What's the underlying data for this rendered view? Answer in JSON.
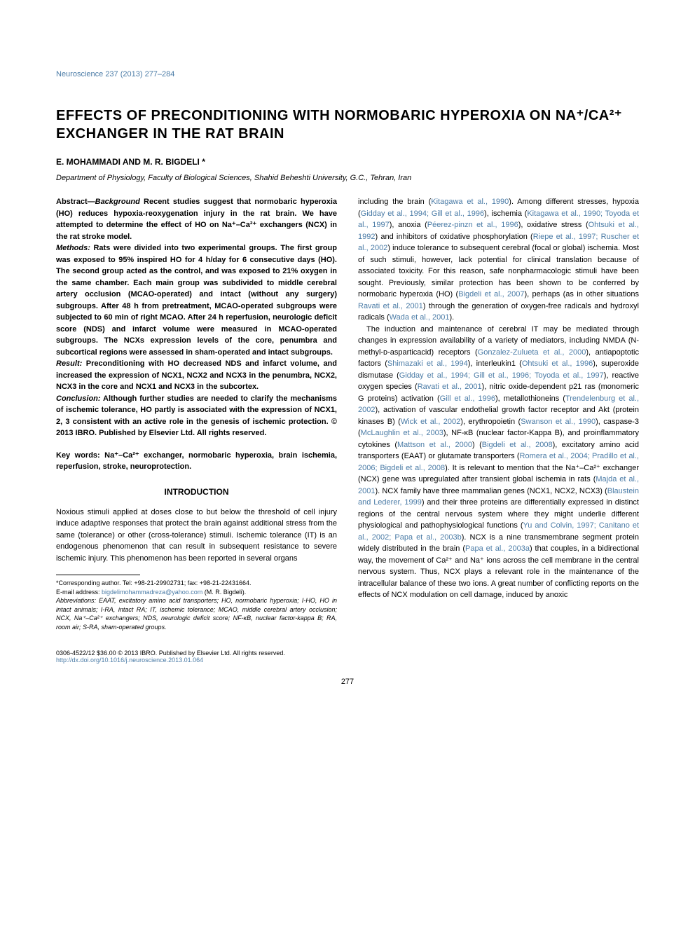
{
  "journal_ref": "Neuroscience 237 (2013) 277–284",
  "title": "EFFECTS OF PRECONDITIONING WITH NORMOBARIC HYPEROXIA ON NA⁺/CA²⁺ EXCHANGER IN THE RAT BRAIN",
  "authors": "E. MOHAMMADI AND M. R. BIGDELI *",
  "affiliation": "Department of Physiology, Faculty of Biological Sciences, Shahid Beheshti University, G.C., Tehran, Iran",
  "abstract": {
    "label": "Abstract—",
    "background_label": "Background",
    "background": " Recent studies suggest that normobaric hyperoxia (HO) reduces hypoxia-reoxygenation injury in the rat brain. We have attempted to determine the effect of HO on Na⁺–Ca²⁺ exchangers (NCX) in the rat stroke model.",
    "methods_label": "Methods:",
    "methods": " Rats were divided into two experimental groups. The first group was exposed to 95% inspired HO for 4 h/day for 6 consecutive days (HO). The second group acted as the control, and was exposed to 21% oxygen in the same chamber. Each main group was subdivided to middle cerebral artery occlusion (MCAO-operated) and intact (without any surgery) subgroups. After 48 h from pretreatment, MCAO-operated subgroups were subjected to 60 min of right MCAO. After 24 h reperfusion, neurologic deficit score (NDS) and infarct volume were measured in MCAO-operated subgroups. The NCXs expression levels of the core, penumbra and subcortical regions were assessed in sham-operated and intact subgroups.",
    "result_label": "Result:",
    "result": " Preconditioning with HO decreased NDS and infarct volume, and increased the expression of NCX1, NCX2 and NCX3 in the penumbra, NCX2, NCX3 in the core and NCX1 and NCX3 in the subcortex.",
    "conclusion_label": "Conclusion:",
    "conclusion": " Although further studies are needed to clarify the mechanisms of ischemic tolerance, HO partly is associated with the expression of NCX1, 2, 3 consistent with an active role in the genesis of ischemic protection.",
    "copyright": "© 2013 IBRO. Published by Elsevier Ltd. All rights reserved."
  },
  "keywords": "Key words: Na⁺–Ca²⁺ exchanger, normobaric hyperoxia, brain ischemia, reperfusion, stroke, neuroprotection.",
  "intro_heading": "INTRODUCTION",
  "intro_p1": "Noxious stimuli applied at doses close to but below the threshold of cell injury induce adaptive responses that protect the brain against additional stress from the same (tolerance) or other (cross-tolerance) stimuli. Ischemic tolerance (IT) is an endogenous phenomenon that can result in subsequent resistance to severe ischemic injury. This phenomenon has been reported in several organs",
  "right_col_p1a": "including the brain (",
  "cite1": "Kitagawa et al., 1990",
  "right_col_p1b": "). Among different stresses, hypoxia (",
  "cite2": "Gidday et al., 1994; Gill et al., 1996",
  "right_col_p1c": "), ischemia (",
  "cite3": "Kitagawa et al., 1990; Toyoda et al., 1997",
  "right_col_p1d": "), anoxia (",
  "cite4": "Péerez-pinzn et al., 1996",
  "right_col_p1e": "), oxidative stress (",
  "cite5": "Ohtsuki et al., 1992",
  "right_col_p1f": ") and inhibitors of oxidative phosphorylation (",
  "cite6": "Riepe et al., 1997; Ruscher et al., 2002",
  "right_col_p1g": ") induce tolerance to subsequent cerebral (focal or global) ischemia. Most of such stimuli, however, lack potential for clinical translation because of associated toxicity. For this reason, safe nonpharmacologic stimuli have been sought. Previously, similar protection has been shown to be conferred by normobaric hyperoxia (HO) (",
  "cite7": "Bigdeli et al., 2007",
  "right_col_p1h": "), perhaps (as in other situations ",
  "cite8": "Ravati et al., 2001",
  "right_col_p1i": ") through the generation of oxygen-free radicals and hydroxyl radicals (",
  "cite9": "Wada et al., 2001",
  "right_col_p1j": ").",
  "right_col_p2a": "The induction and maintenance of cerebral IT may be mediated through changes in expression availability of a variety of mediators, including NMDA (N-methyl-ᴅ-asparticacid) receptors (",
  "cite10": "Gonzalez-Zulueta et al., 2000",
  "right_col_p2b": "), antiapoptotic factors (",
  "cite11": "Shimazaki et al., 1994",
  "right_col_p2c": "), interleukin1 (",
  "cite12": "Ohtsuki et al., 1996",
  "right_col_p2d": "), superoxide dismutase (",
  "cite13": "Gidday et al., 1994; Gill et al., 1996; Toyoda et al., 1997",
  "right_col_p2e": "), reactive oxygen species (",
  "cite14": "Ravati et al., 2001",
  "right_col_p2f": "), nitric oxide-dependent p21 ras (monomeric G proteins) activation (",
  "cite15": "Gill et al., 1996",
  "right_col_p2g": "), metallothioneins (",
  "cite16": "Trendelenburg et al., 2002",
  "right_col_p2h": "), activation of vascular endothelial growth factor receptor and Akt (protein kinases B) (",
  "cite17": "Wick et al., 2002",
  "right_col_p2i": "), erythropoietin (",
  "cite18": "Swanson et al., 1990",
  "right_col_p2j": "), caspase-3 (",
  "cite19": "McLaughlin et al., 2003",
  "right_col_p2k": "), NF-κB (nuclear factor-Kappa B), and proinflammatory cytokines (",
  "cite20": "Mattson et al., 2000",
  "right_col_p2l": ") (",
  "cite21": "Bigdeli et al., 2008",
  "right_col_p2m": "), excitatory amino acid transporters (EAAT) or glutamate transporters (",
  "cite22": "Romera et al., 2004; Pradillo et al., 2006; Bigdeli et al., 2008",
  "right_col_p2n": "). It is relevant to mention that the Na⁺–Ca²⁺ exchanger (NCX) gene was upregulated after transient global ischemia in rats (",
  "cite23": "Majda et al., 2001",
  "right_col_p2o": "). NCX family have three mammalian genes (NCX1, NCX2, NCX3) (",
  "cite24": "Blaustein and Lederer, 1999",
  "right_col_p2p": ") and their three proteins are differentially expressed in distinct regions of the central nervous system where they might underlie different physiological and pathophysiological functions (",
  "cite25": "Yu and Colvin, 1997; Canitano et al., 2002; Papa et al., 2003b",
  "right_col_p2q": "). NCX is a nine transmembrane segment protein widely distributed in the brain (",
  "cite26": "Papa et al., 2003a",
  "right_col_p2r": ") that couples, in a bidirectional way, the movement of Ca²⁺ and Na⁺ ions across the cell membrane in the central nervous system. Thus, NCX plays a relevant role in the maintenance of the intracellular balance of these two ions. A great number of conflicting reports on the effects of NCX modulation on cell damage, induced by anoxic",
  "footnote_corr": "*Corresponding author. Tel: +98-21-29902731; fax: +98-21-22431664.",
  "footnote_email_label": "E-mail address: ",
  "footnote_email": "bigdelimohammadreza@yahoo.com",
  "footnote_email_suffix": " (M. R. Bigdeli).",
  "footnote_abbrev": "Abbreviations: EAAT, excitatory amino acid transporters; HO, normobaric hyperoxia; I-HO, HO in intact animals; I-RA, intact RA; IT, ischemic tolerance; MCAO, middle cerebral artery occlusion; NCX, Na⁺–Ca²⁺ exchangers; NDS, neurologic deficit score; NF-κB, nuclear factor-kappa B; RA, room air; S-RA, sham-operated groups.",
  "bottom_copyright": "0306-4522/12 $36.00 © 2013 IBRO. Published by Elsevier Ltd. All rights reserved.",
  "doi": "http://dx.doi.org/10.1016/j.neuroscience.2013.01.064",
  "page_num": "277"
}
